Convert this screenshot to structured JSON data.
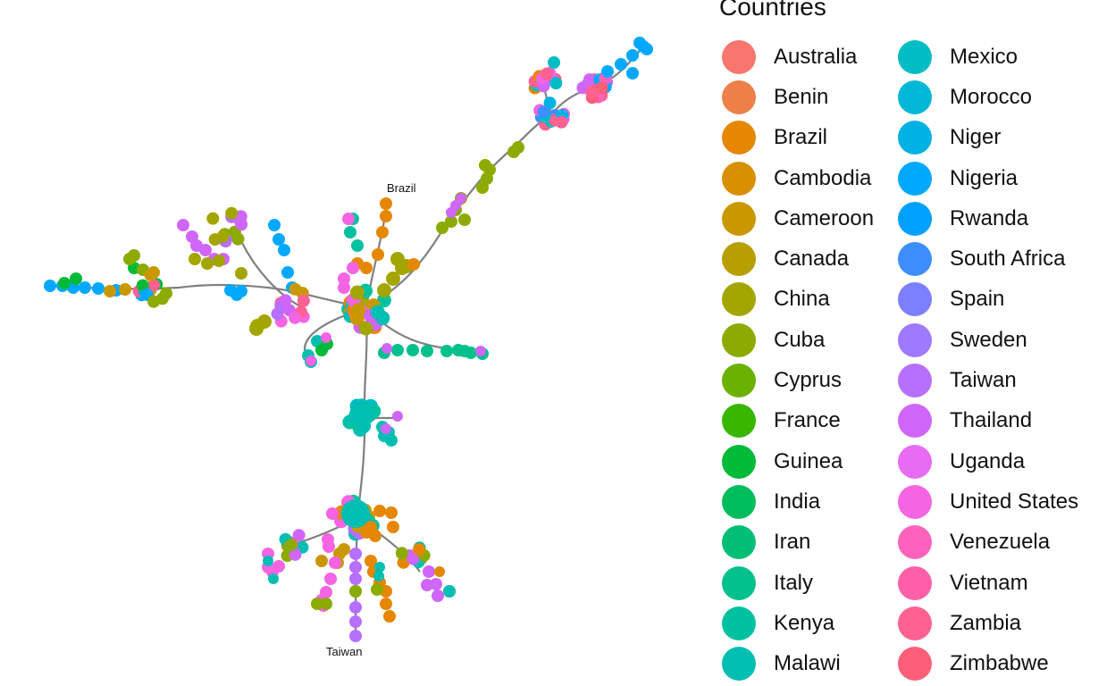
{
  "legend": {
    "title": "Countries",
    "items": [
      {
        "label": "Australia",
        "color": "#F8766D"
      },
      {
        "label": "Benin",
        "color": "#EF7F49"
      },
      {
        "label": "Brazil",
        "color": "#E58700"
      },
      {
        "label": "Cambodia",
        "color": "#D89000"
      },
      {
        "label": "Cameroon",
        "color": "#C99800"
      },
      {
        "label": "Canada",
        "color": "#B79F00"
      },
      {
        "label": "China",
        "color": "#A3A500"
      },
      {
        "label": "Cuba",
        "color": "#8BAB00"
      },
      {
        "label": "Cyprus",
        "color": "#6BB100"
      },
      {
        "label": "France",
        "color": "#39B600"
      },
      {
        "label": "Guinea",
        "color": "#00BA38"
      },
      {
        "label": "India",
        "color": "#00BD5C"
      },
      {
        "label": "Iran",
        "color": "#00BF74"
      },
      {
        "label": "Italy",
        "color": "#00C08B"
      },
      {
        "label": "Kenya",
        "color": "#00C19F"
      },
      {
        "label": "Malawi",
        "color": "#00BFB2"
      },
      {
        "label": "Mexico",
        "color": "#00BCC4"
      },
      {
        "label": "Morocco",
        "color": "#00B8D5"
      },
      {
        "label": "Niger",
        "color": "#00B2E3"
      },
      {
        "label": "Nigeria",
        "color": "#00A9FF"
      },
      {
        "label": "Rwanda",
        "color": "#00A0FF"
      },
      {
        "label": "South Africa",
        "color": "#3D8FFF"
      },
      {
        "label": "Spain",
        "color": "#7C7FFF"
      },
      {
        "label": "Sweden",
        "color": "#9F79FF"
      },
      {
        "label": "Taiwan",
        "color": "#B66FFF"
      },
      {
        "label": "Thailand",
        "color": "#D066F8"
      },
      {
        "label": "Uganda",
        "color": "#E76BF3"
      },
      {
        "label": "United States",
        "color": "#F564E3"
      },
      {
        "label": "Venezuela",
        "color": "#FF62BC"
      },
      {
        "label": "Vietnam",
        "color": "#FF5FA8"
      },
      {
        "label": "Zambia",
        "color": "#FF6190"
      },
      {
        "label": "Zimbabwe",
        "color": "#FC5F77"
      }
    ]
  },
  "network": {
    "node_labels": {
      "brazil": "Brazil",
      "taiwan": "Taiwan"
    },
    "edge_color": "#808080"
  }
}
